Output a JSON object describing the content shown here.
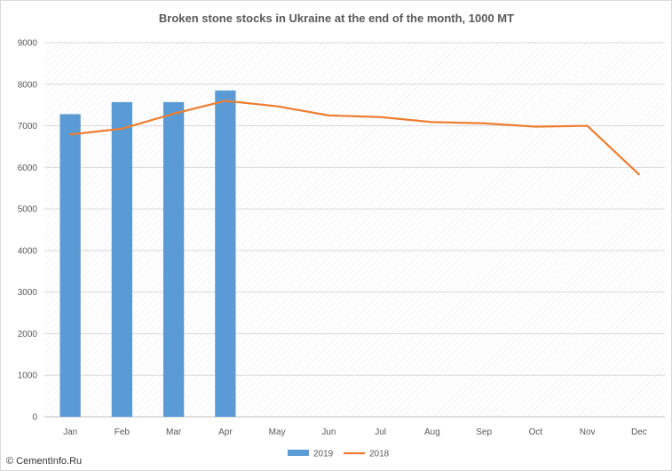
{
  "watermark": "© CementInfo.Ru",
  "chart_data": {
    "type": "bar",
    "title": "Broken stone stocks in Ukraine at the end of the month, 1000 MT",
    "xlabel": "",
    "ylabel": "",
    "categories": [
      "Jan",
      "Feb",
      "Mar",
      "Apr",
      "May",
      "Jun",
      "Jul",
      "Aug",
      "Sep",
      "Oct",
      "Nov",
      "Dec"
    ],
    "ylim": [
      0,
      9000
    ],
    "yticks": [
      "0",
      "1000",
      "2000",
      "3000",
      "4000",
      "5000",
      "6000",
      "7000",
      "8000",
      "9000"
    ],
    "grid": true,
    "legend_position": "bottom",
    "series": [
      {
        "name": "2019",
        "type": "bar",
        "color": "#5b9bd5",
        "values": [
          7280,
          7570,
          7570,
          7850,
          null,
          null,
          null,
          null,
          null,
          null,
          null,
          null
        ]
      },
      {
        "name": "2018",
        "type": "line",
        "color": "#ed7d31",
        "values": [
          6790,
          6930,
          7290,
          7600,
          7470,
          7250,
          7210,
          7090,
          7060,
          6980,
          7000,
          5830
        ]
      }
    ]
  }
}
